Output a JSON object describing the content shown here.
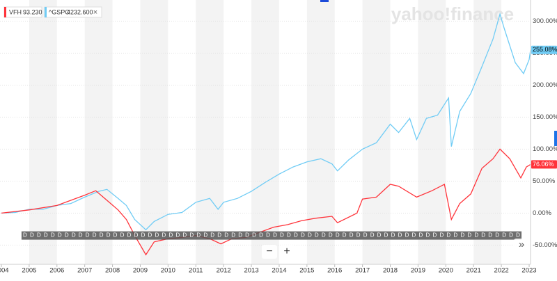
{
  "chart_data": {
    "type": "line",
    "watermark": "yahoo!finance",
    "xlim": [
      2003.95,
      2023.05
    ],
    "xticks": [
      2004,
      2005,
      2006,
      2007,
      2008,
      2009,
      2010,
      2011,
      2012,
      2013,
      2014,
      2015,
      2016,
      2017,
      2018,
      2019,
      2020,
      2021,
      2022,
      2023
    ],
    "ylim": [
      -80,
      333
    ],
    "yticks": [
      {
        "value": 300,
        "label": "300.00%"
      },
      {
        "value": 250,
        "label": "250.00%"
      },
      {
        "value": 200,
        "label": "200.00%"
      },
      {
        "value": 150,
        "label": "150.00%"
      },
      {
        "value": 100,
        "label": "100.00%"
      },
      {
        "value": 50,
        "label": "50.00%"
      },
      {
        "value": 0,
        "label": "0.00%"
      },
      {
        "value": -50,
        "label": "-50.00%"
      }
    ],
    "grid": true,
    "year_bands": true,
    "series": [
      {
        "name": "VFH",
        "quote": "93.230",
        "color": "#ff333a",
        "end_label": "76.06%",
        "x": [
          2004.0,
          2005.0,
          2006.0,
          2007.0,
          2007.4,
          2007.8,
          2008.2,
          2008.5,
          2008.8,
          2009.2,
          2009.5,
          2010.0,
          2010.5,
          2011.0,
          2011.5,
          2011.9,
          2012.3,
          2012.8,
          2013.3,
          2013.8,
          2014.3,
          2014.8,
          2015.3,
          2015.9,
          2016.1,
          2016.8,
          2017.0,
          2017.5,
          2018.0,
          2018.3,
          2018.95,
          2019.5,
          2019.95,
          2020.2,
          2020.5,
          2020.9,
          2021.3,
          2021.7,
          2021.95,
          2022.3,
          2022.7,
          2022.9,
          2023.05
        ],
        "values": [
          0,
          5,
          12,
          28,
          35,
          20,
          5,
          -10,
          -35,
          -65,
          -45,
          -40,
          -38,
          -35,
          -40,
          -48,
          -40,
          -38,
          -30,
          -22,
          -18,
          -12,
          -8,
          -5,
          -15,
          0,
          22,
          25,
          45,
          42,
          25,
          35,
          45,
          -10,
          15,
          30,
          70,
          85,
          100,
          85,
          55,
          72,
          76.06
        ]
      },
      {
        "name": "^GSPC",
        "quote": "4232.600",
        "color": "#70ccf5",
        "end_label": "255.08%",
        "x": [
          2004.0,
          2004.5,
          2005.0,
          2005.5,
          2006.0,
          2006.5,
          2007.0,
          2007.5,
          2007.8,
          2008.2,
          2008.5,
          2008.8,
          2009.2,
          2009.5,
          2010.0,
          2010.5,
          2011.0,
          2011.5,
          2011.8,
          2012.0,
          2012.5,
          2013.0,
          2013.5,
          2014.0,
          2014.5,
          2015.0,
          2015.5,
          2015.9,
          2016.1,
          2016.5,
          2017.0,
          2017.5,
          2018.0,
          2018.3,
          2018.7,
          2018.95,
          2019.3,
          2019.7,
          2020.1,
          2020.2,
          2020.5,
          2020.9,
          2021.3,
          2021.7,
          2021.95,
          2022.1,
          2022.5,
          2022.8,
          2023.0,
          2023.05
        ],
        "values": [
          0,
          1,
          6,
          6,
          12,
          15,
          25,
          34,
          37,
          23,
          12,
          -10,
          -26,
          -13,
          -2,
          1,
          17,
          23,
          6,
          17,
          23,
          34,
          48,
          61,
          72,
          80,
          85,
          77,
          66,
          83,
          100,
          110,
          139,
          126,
          148,
          115,
          148,
          153,
          180,
          104,
          159,
          187,
          229,
          272,
          311,
          289,
          235,
          218,
          240,
          255.08
        ]
      }
    ],
    "dividends": {
      "label": "D",
      "x": [
        2004.85,
        2005.1,
        2005.35,
        2005.6,
        2005.85,
        2006.1,
        2006.35,
        2006.6,
        2006.85,
        2007.1,
        2007.35,
        2007.6,
        2007.85,
        2008.1,
        2008.35,
        2008.6,
        2008.85,
        2009.1,
        2009.35,
        2009.6,
        2009.85,
        2010.1,
        2010.35,
        2010.6,
        2010.85,
        2011.1,
        2011.35,
        2011.6,
        2011.85,
        2012.1,
        2012.35,
        2012.6,
        2012.85,
        2013.1,
        2013.35,
        2013.6,
        2013.85,
        2014.1,
        2014.35,
        2014.6,
        2014.85,
        2015.1,
        2015.35,
        2015.6,
        2015.85,
        2016.1,
        2016.35,
        2016.6,
        2016.85,
        2017.1,
        2017.35,
        2017.6,
        2017.85,
        2018.1,
        2018.35,
        2018.6,
        2018.85,
        2019.1,
        2019.35,
        2019.6,
        2019.85,
        2020.1,
        2020.35,
        2020.6,
        2020.85,
        2021.1,
        2021.35,
        2021.6,
        2021.85,
        2022.1,
        2022.35,
        2022.6
      ]
    },
    "controls": {
      "zoom_out": "−",
      "zoom_in": "+",
      "more": "»",
      "close": "×"
    }
  }
}
